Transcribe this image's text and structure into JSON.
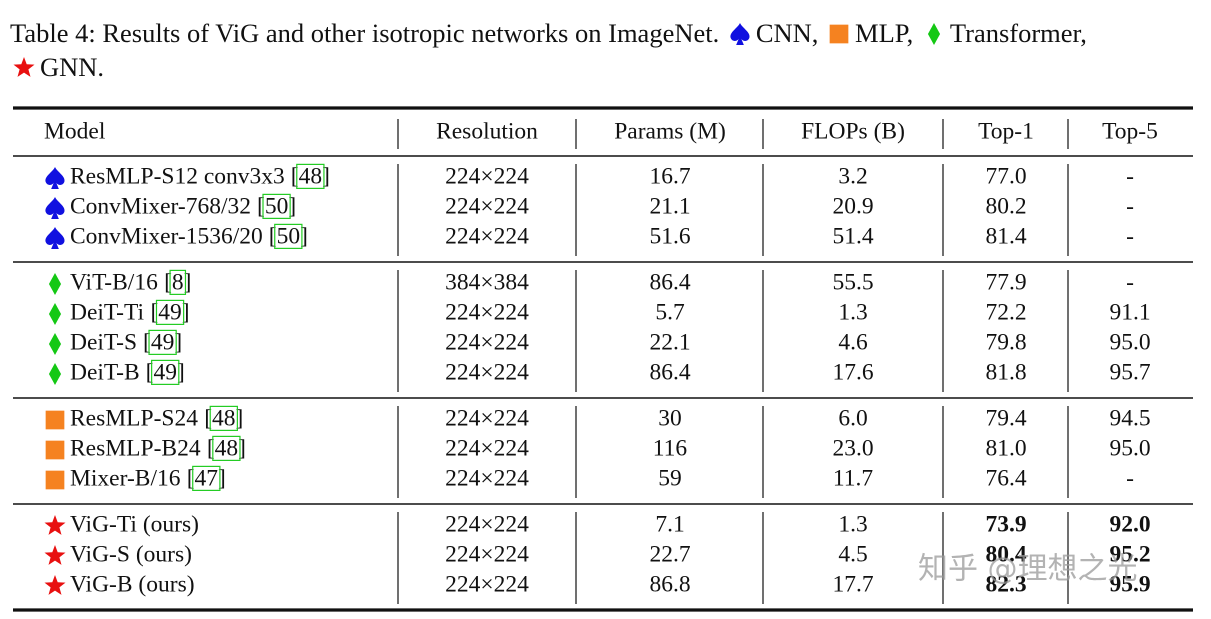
{
  "caption": {
    "text": "Table 4: Results of ViG and other isotropic networks on ImageNet.",
    "legend": [
      {
        "kind": "cnn",
        "label": "CNN,"
      },
      {
        "kind": "mlp",
        "label": "MLP,"
      },
      {
        "kind": "transformer",
        "label": "Transformer,"
      },
      {
        "kind": "gnn",
        "label": "GNN."
      }
    ]
  },
  "table": {
    "header": [
      "Model",
      "Resolution",
      "Params (M)",
      "FLOPs (B)",
      "Top-1",
      "Top-5"
    ],
    "groups": [
      {
        "kind": "cnn",
        "rows": [
          [
            "ResMLP-S12 conv3x3",
            "[48]",
            "224×224",
            "16.7",
            "3.2",
            "77.0",
            "-"
          ],
          [
            "ConvMixer-768/32",
            "[50]",
            "224×224",
            "21.1",
            "20.9",
            "80.2",
            "-"
          ],
          [
            "ConvMixer-1536/20",
            "[50]",
            "224×224",
            "51.6",
            "51.4",
            "81.4",
            "-"
          ]
        ]
      },
      {
        "kind": "transformer",
        "rows": [
          [
            "ViT-B/16",
            "[8]",
            "384×384",
            "86.4",
            "55.5",
            "77.9",
            "-"
          ],
          [
            "DeiT-Ti",
            "[49]",
            "224×224",
            "5.7",
            "1.3",
            "72.2",
            "91.1"
          ],
          [
            "DeiT-S",
            "[49]",
            "224×224",
            "22.1",
            "4.6",
            "79.8",
            "95.0"
          ],
          [
            "DeiT-B",
            "[49]",
            "224×224",
            "86.4",
            "17.6",
            "81.8",
            "95.7"
          ]
        ]
      },
      {
        "kind": "mlp",
        "rows": [
          [
            "ResMLP-S24",
            "[48]",
            "224×224",
            "30",
            "6.0",
            "79.4",
            "94.5"
          ],
          [
            "ResMLP-B24",
            "[48]",
            "224×224",
            "116",
            "23.0",
            "81.0",
            "95.0"
          ],
          [
            "Mixer-B/16",
            "[47]",
            "224×224",
            "59",
            "11.7",
            "76.4",
            "-"
          ]
        ]
      },
      {
        "kind": "gnn",
        "bold_columns": [
          5,
          6
        ],
        "rows": [
          [
            "ViG-Ti (ours)",
            null,
            "224×224",
            "7.1",
            "1.3",
            "73.9",
            "92.0"
          ],
          [
            "ViG-S (ours)",
            null,
            "224×224",
            "22.7",
            "4.5",
            "80.4",
            "95.2"
          ],
          [
            "ViG-B (ours)",
            null,
            "224×224",
            "86.8",
            "17.7",
            "82.3",
            "95.9"
          ]
        ]
      }
    ]
  },
  "watermark": "知乎 @理想之光"
}
